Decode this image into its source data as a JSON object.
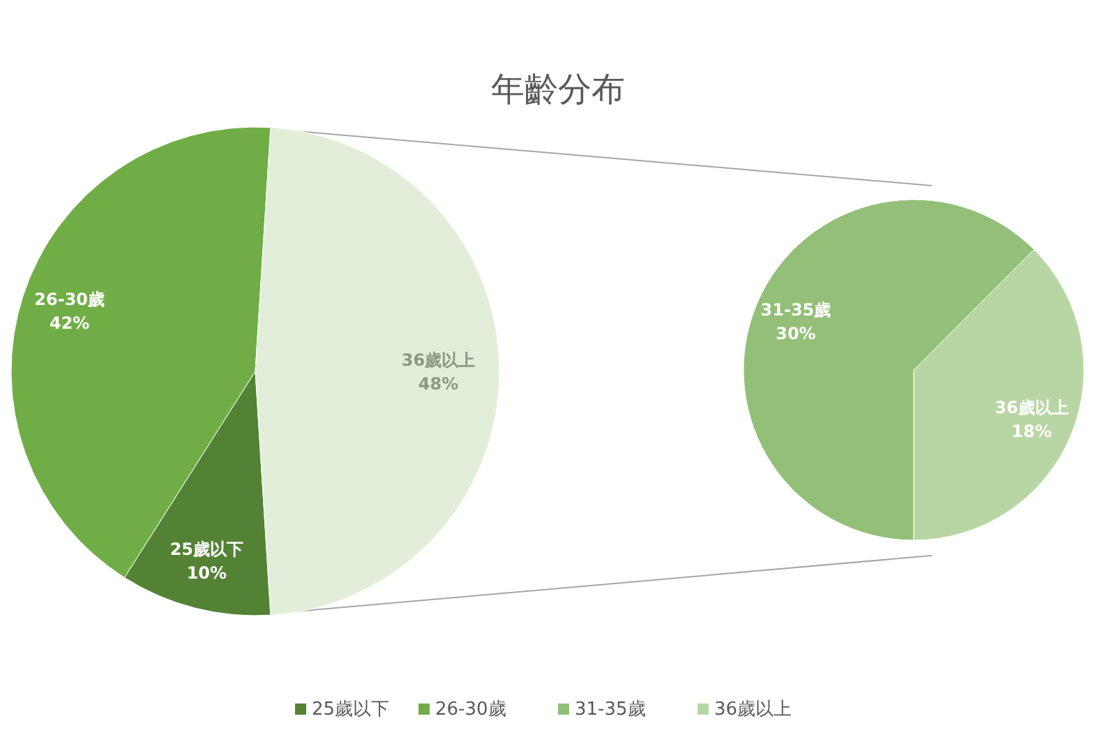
{
  "chart_data": [
    {
      "type": "pie",
      "title": "年齡分布",
      "categories": [
        "25歲以下",
        "26-30歲",
        "36歲以上"
      ],
      "values": [
        10,
        42,
        48
      ],
      "colors": [
        "#548235",
        "#70ad47",
        "#e2eed9"
      ],
      "value_labels": [
        "10%",
        "42%",
        "48%"
      ]
    },
    {
      "type": "pie",
      "categories": [
        "31-35歲",
        "36歲以上"
      ],
      "values": [
        30,
        18
      ],
      "colors": [
        "#93bf78",
        "#b8d6a3"
      ],
      "value_labels": [
        "30%",
        "18%"
      ],
      "legend": "bottom"
    }
  ]
}
